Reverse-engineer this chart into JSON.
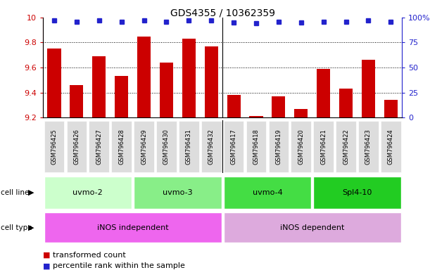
{
  "title": "GDS4355 / 10362359",
  "samples": [
    "GSM796425",
    "GSM796426",
    "GSM796427",
    "GSM796428",
    "GSM796429",
    "GSM796430",
    "GSM796431",
    "GSM796432",
    "GSM796417",
    "GSM796418",
    "GSM796419",
    "GSM796420",
    "GSM796421",
    "GSM796422",
    "GSM796423",
    "GSM796424"
  ],
  "bar_values": [
    9.75,
    9.46,
    9.69,
    9.53,
    9.85,
    9.64,
    9.83,
    9.77,
    9.38,
    9.21,
    9.37,
    9.27,
    9.59,
    9.43,
    9.66,
    9.34
  ],
  "percentile_values": [
    97,
    96,
    97,
    96,
    97,
    96,
    97,
    97,
    95,
    94,
    96,
    95,
    96,
    96,
    97,
    96
  ],
  "ylim": [
    9.2,
    10.0
  ],
  "yticks": [
    9.2,
    9.4,
    9.6,
    9.8,
    10.0
  ],
  "right_yticks": [
    0,
    25,
    50,
    75,
    100
  ],
  "bar_color": "#cc0000",
  "dot_color": "#2222cc",
  "cell_line_groups": [
    {
      "label": "uvmo-2",
      "start": 0,
      "end": 3,
      "color": "#ccffcc"
    },
    {
      "label": "uvmo-3",
      "start": 4,
      "end": 7,
      "color": "#88ee88"
    },
    {
      "label": "uvmo-4",
      "start": 8,
      "end": 11,
      "color": "#44dd44"
    },
    {
      "label": "Spl4-10",
      "start": 12,
      "end": 15,
      "color": "#22cc22"
    }
  ],
  "cell_type_groups": [
    {
      "label": "iNOS independent",
      "start": 0,
      "end": 7,
      "color": "#ee66ee"
    },
    {
      "label": "iNOS dependent",
      "start": 8,
      "end": 15,
      "color": "#ddaadd"
    }
  ],
  "legend_items": [
    {
      "label": "transformed count",
      "color": "#cc0000"
    },
    {
      "label": "percentile rank within the sample",
      "color": "#2222cc"
    }
  ],
  "background_color": "#ffffff",
  "left_axis_color": "#cc0000",
  "right_axis_color": "#2222cc",
  "separator_idx": 7.5
}
